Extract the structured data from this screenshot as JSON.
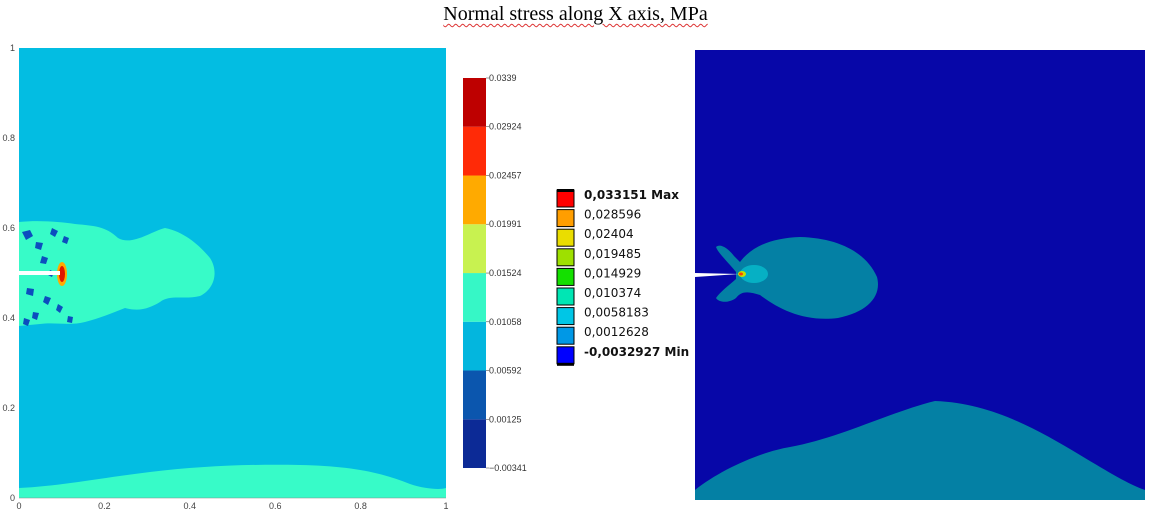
{
  "page": {
    "title": "Normal stress along X axis, MPa"
  },
  "chart_data": [
    {
      "type": "heatmap",
      "title": "",
      "xlabel": "",
      "ylabel": "",
      "xlim": [
        0,
        1
      ],
      "ylim": [
        0,
        1
      ],
      "x_ticks": [
        "0",
        "0.2",
        "0.4",
        "0.6",
        "0.8",
        "1"
      ],
      "y_ticks": [
        "0",
        "0.2",
        "0.4",
        "0.6",
        "0.8",
        "1"
      ],
      "colorbar": {
        "levels": [
          "−0.00341",
          "0.00125",
          "0.00592",
          "0.01058",
          "0.01524",
          "0.01991",
          "0.02457",
          "0.02924",
          "0.0339"
        ],
        "values": [
          -0.00341,
          0.00125,
          0.00592,
          0.01058,
          0.01524,
          0.01991,
          0.02457,
          0.02924,
          0.0339
        ],
        "colors": [
          "#0c2a96",
          "#0b56ae",
          "#03b6de",
          "#36f7c6",
          "#c8f250",
          "#ffaa00",
          "#ff2a07",
          "#be0000"
        ]
      }
    },
    {
      "type": "heatmap",
      "legend": [
        {
          "label": "0,033151 Max",
          "color": "#ff0000",
          "bold": true
        },
        {
          "label": "0,028596",
          "color": "#ff9e00"
        },
        {
          "label": "0,02404",
          "color": "#eadd00"
        },
        {
          "label": "0,019485",
          "color": "#9ee000"
        },
        {
          "label": "0,014929",
          "color": "#14e000"
        },
        {
          "label": "0,010374",
          "color": "#00e6b4"
        },
        {
          "label": "0,0058183",
          "color": "#00c6e6"
        },
        {
          "label": "0,0012628",
          "color": "#0098e6"
        },
        {
          "label": "-0,0032927 Min",
          "color": "#0000ff",
          "bold": true
        }
      ]
    }
  ]
}
